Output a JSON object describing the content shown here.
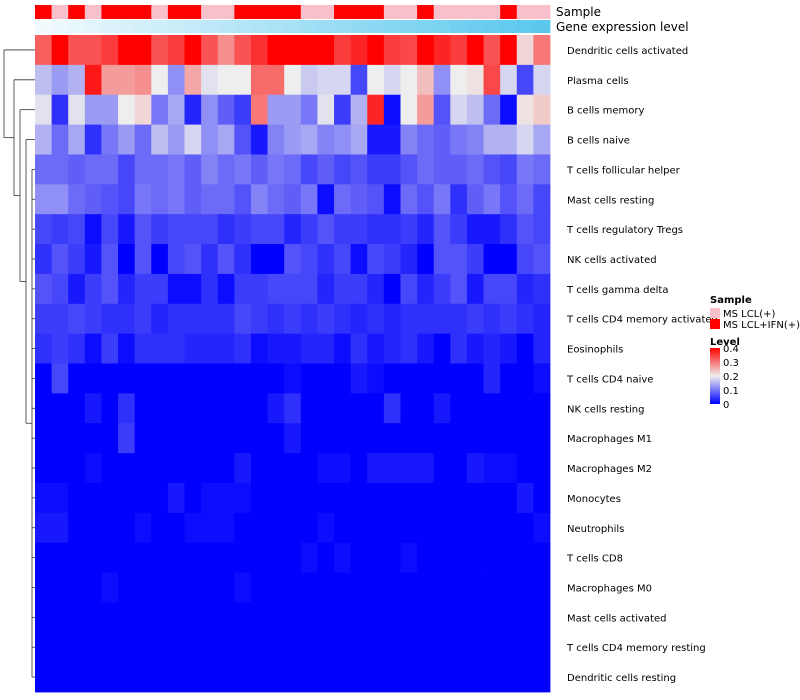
{
  "chart_data": {
    "type": "heatmap",
    "title": "",
    "annotation_labels": [
      "Sample",
      "Gene expression level"
    ],
    "rows": [
      "Dendritic cells activated",
      "Plasma cells",
      "B cells memory",
      "B cells naive",
      "T cells follicular helper",
      "Mast cells resting",
      "T cells regulatory  Tregs",
      "NK cells activated",
      "T cells gamma delta",
      "T cells CD4 memory activated",
      "Eosinophils",
      "T cells CD4 naive",
      "NK cells resting",
      "Macrophages M1",
      "Macrophages M2",
      "Monocytes",
      "Neutrophils",
      "T cells CD8",
      "Macrophages M0",
      "Mast cells activated",
      "T cells CD4 memory resting",
      "Dendritic cells resting"
    ],
    "sample_group": [
      1,
      0,
      1,
      0,
      1,
      1,
      1,
      0,
      1,
      1,
      0,
      0,
      1,
      1,
      1,
      1,
      0,
      0,
      1,
      1,
      1,
      0,
      0,
      1,
      0,
      0,
      0,
      0,
      1,
      0,
      0
    ],
    "gene_expression_level": [
      0.02,
      0.05,
      0.08,
      0.11,
      0.14,
      0.17,
      0.2,
      0.23,
      0.26,
      0.29,
      0.32,
      0.35,
      0.38,
      0.41,
      0.44,
      0.47,
      0.5,
      0.53,
      0.56,
      0.59,
      0.62,
      0.65,
      0.68,
      0.71,
      0.74,
      0.77,
      0.8,
      0.83,
      0.86,
      0.89,
      0.92
    ],
    "values": [
      [
        0.32,
        0.4,
        0.33,
        0.33,
        0.35,
        0.4,
        0.4,
        0.33,
        0.35,
        0.4,
        0.33,
        0.28,
        0.33,
        0.36,
        0.4,
        0.4,
        0.4,
        0.4,
        0.35,
        0.37,
        0.4,
        0.35,
        0.34,
        0.4,
        0.37,
        0.35,
        0.4,
        0.33,
        0.4,
        0.22,
        0.3
      ],
      [
        0.16,
        0.13,
        0.15,
        0.38,
        0.27,
        0.27,
        0.28,
        0.2,
        0.12,
        0.26,
        0.19,
        0.2,
        0.2,
        0.31,
        0.31,
        0.2,
        0.17,
        0.18,
        0.18,
        0.06,
        0.2,
        0.18,
        0.2,
        0.24,
        0.12,
        0.2,
        0.21,
        0.34,
        0.18,
        0.06,
        0.18
      ],
      [
        0.19,
        0.04,
        0.19,
        0.13,
        0.13,
        0.2,
        0.22,
        0.1,
        0.14,
        0.03,
        0.12,
        0.08,
        0.05,
        0.3,
        0.13,
        0.13,
        0.1,
        0.19,
        0.05,
        0.15,
        0.37,
        0.01,
        0.2,
        0.27,
        0.07,
        0.18,
        0.16,
        0.09,
        0.01,
        0.21,
        0.23
      ],
      [
        0.15,
        0.09,
        0.14,
        0.04,
        0.1,
        0.13,
        0.09,
        0.16,
        0.13,
        0.18,
        0.12,
        0.14,
        0.07,
        0.02,
        0.11,
        0.13,
        0.14,
        0.11,
        0.12,
        0.14,
        0.02,
        0.02,
        0.11,
        0.09,
        0.08,
        0.1,
        0.11,
        0.15,
        0.15,
        0.18,
        0.14
      ],
      [
        0.09,
        0.09,
        0.08,
        0.09,
        0.09,
        0.06,
        0.09,
        0.09,
        0.1,
        0.08,
        0.11,
        0.09,
        0.1,
        0.08,
        0.1,
        0.09,
        0.06,
        0.08,
        0.06,
        0.07,
        0.05,
        0.05,
        0.07,
        0.09,
        0.08,
        0.08,
        0.09,
        0.07,
        0.06,
        0.1,
        0.09
      ],
      [
        0.12,
        0.12,
        0.09,
        0.08,
        0.07,
        0.06,
        0.1,
        0.09,
        0.1,
        0.08,
        0.09,
        0.09,
        0.07,
        0.11,
        0.09,
        0.08,
        0.1,
        0.01,
        0.09,
        0.08,
        0.07,
        0.01,
        0.09,
        0.07,
        0.1,
        0.04,
        0.08,
        0.1,
        0.07,
        0.09,
        0.06
      ],
      [
        0.06,
        0.05,
        0.06,
        0.01,
        0.06,
        0.02,
        0.07,
        0.05,
        0.06,
        0.06,
        0.06,
        0.04,
        0.05,
        0.06,
        0.06,
        0.03,
        0.05,
        0.07,
        0.05,
        0.05,
        0.04,
        0.04,
        0.05,
        0.03,
        0.07,
        0.05,
        0.02,
        0.02,
        0.04,
        0.07,
        0.06
      ],
      [
        0.04,
        0.07,
        0.05,
        0.02,
        0.07,
        0.0,
        0.07,
        0.0,
        0.06,
        0.07,
        0.04,
        0.07,
        0.04,
        0.0,
        0.0,
        0.07,
        0.06,
        0.04,
        0.06,
        0.01,
        0.06,
        0.05,
        0.03,
        0.0,
        0.07,
        0.07,
        0.05,
        0.0,
        0.0,
        0.06,
        0.07
      ],
      [
        0.07,
        0.06,
        0.02,
        0.05,
        0.07,
        0.03,
        0.05,
        0.05,
        0.01,
        0.01,
        0.04,
        0.01,
        0.05,
        0.05,
        0.06,
        0.06,
        0.06,
        0.03,
        0.05,
        0.05,
        0.03,
        0.0,
        0.06,
        0.03,
        0.05,
        0.07,
        0.02,
        0.06,
        0.06,
        0.03,
        0.04
      ],
      [
        0.05,
        0.05,
        0.06,
        0.05,
        0.04,
        0.04,
        0.05,
        0.03,
        0.04,
        0.04,
        0.04,
        0.04,
        0.06,
        0.05,
        0.04,
        0.05,
        0.04,
        0.05,
        0.04,
        0.03,
        0.04,
        0.03,
        0.04,
        0.04,
        0.04,
        0.04,
        0.05,
        0.04,
        0.05,
        0.04,
        0.03
      ],
      [
        0.04,
        0.05,
        0.04,
        0.01,
        0.05,
        0.01,
        0.04,
        0.04,
        0.04,
        0.03,
        0.03,
        0.03,
        0.04,
        0.01,
        0.02,
        0.02,
        0.03,
        0.03,
        0.01,
        0.04,
        0.02,
        0.03,
        0.04,
        0.02,
        0.0,
        0.04,
        0.02,
        0.03,
        0.02,
        0.0,
        0.03
      ],
      [
        0.0,
        0.06,
        0.0,
        0.0,
        0.0,
        0.0,
        0.0,
        0.0,
        0.0,
        0.0,
        0.0,
        0.0,
        0.0,
        0.0,
        0.0,
        0.01,
        0.0,
        0.0,
        0.0,
        0.02,
        0.01,
        0.0,
        0.0,
        0.0,
        0.0,
        0.0,
        0.0,
        0.03,
        0.0,
        0.0,
        0.01
      ],
      [
        0.0,
        0.0,
        0.0,
        0.02,
        0.0,
        0.04,
        0.0,
        0.0,
        0.0,
        0.0,
        0.0,
        0.0,
        0.0,
        0.0,
        0.02,
        0.04,
        0.0,
        0.0,
        0.0,
        0.0,
        0.0,
        0.04,
        0.0,
        0.0,
        0.02,
        0.0,
        0.0,
        0.0,
        0.0,
        0.0,
        0.0
      ],
      [
        0.0,
        0.0,
        0.0,
        0.0,
        0.0,
        0.05,
        0.0,
        0.0,
        0.0,
        0.0,
        0.0,
        0.0,
        0.0,
        0.0,
        0.0,
        0.02,
        0.0,
        0.0,
        0.0,
        0.0,
        0.0,
        0.0,
        0.0,
        0.0,
        0.0,
        0.0,
        0.0,
        0.0,
        0.0,
        0.0,
        0.0
      ],
      [
        0.0,
        0.0,
        0.0,
        0.01,
        0.0,
        0.0,
        0.0,
        0.0,
        0.0,
        0.0,
        0.0,
        0.0,
        0.02,
        0.0,
        0.0,
        0.0,
        0.0,
        0.01,
        0.01,
        0.0,
        0.02,
        0.02,
        0.02,
        0.02,
        0.0,
        0.0,
        0.02,
        0.01,
        0.01,
        0.0,
        0.0
      ],
      [
        0.01,
        0.01,
        0.0,
        0.0,
        0.0,
        0.0,
        0.0,
        0.0,
        0.02,
        0.0,
        0.01,
        0.01,
        0.01,
        0.0,
        0.0,
        0.0,
        0.0,
        0.0,
        0.0,
        0.0,
        0.0,
        0.0,
        0.0,
        0.0,
        0.0,
        0.0,
        0.0,
        0.0,
        0.0,
        0.02,
        0.0
      ],
      [
        0.02,
        0.02,
        0.0,
        0.0,
        0.0,
        0.0,
        0.01,
        0.0,
        0.0,
        0.01,
        0.01,
        0.01,
        0.0,
        0.0,
        0.0,
        0.0,
        0.0,
        0.01,
        0.0,
        0.0,
        0.0,
        0.0,
        0.0,
        0.0,
        0.0,
        0.0,
        0.0,
        0.0,
        0.0,
        0.0,
        0.01
      ],
      [
        0.0,
        0.0,
        0.0,
        0.0,
        0.0,
        0.0,
        0.0,
        0.0,
        0.0,
        0.0,
        0.0,
        0.0,
        0.0,
        0.0,
        0.0,
        0.0,
        0.01,
        0.0,
        0.01,
        0.0,
        0.0,
        0.0,
        0.01,
        0.0,
        0.0,
        0.0,
        0.0,
        0.0,
        0.0,
        0.0,
        0.0
      ],
      [
        0.0,
        0.0,
        0.0,
        0.0,
        0.01,
        0.0,
        0.0,
        0.0,
        0.0,
        0.0,
        0.0,
        0.0,
        0.01,
        0.0,
        0.0,
        0.0,
        0.0,
        0.0,
        0.0,
        0.0,
        0.0,
        0.0,
        0.0,
        0.0,
        0.0,
        0.0,
        0.0,
        0.0,
        0.0,
        0.0,
        0.0
      ],
      [
        0.0,
        0.0,
        0.0,
        0.0,
        0.0,
        0.0,
        0.0,
        0.0,
        0.0,
        0.0,
        0.0,
        0.0,
        0.0,
        0.0,
        0.0,
        0.0,
        0.0,
        0.0,
        0.0,
        0.0,
        0.0,
        0.0,
        0.0,
        0.0,
        0.0,
        0.0,
        0.0,
        0.0,
        0.0,
        0.0,
        0.0
      ],
      [
        0.0,
        0.0,
        0.0,
        0.0,
        0.0,
        0.0,
        0.0,
        0.0,
        0.0,
        0.0,
        0.0,
        0.0,
        0.0,
        0.0,
        0.0,
        0.0,
        0.0,
        0.0,
        0.0,
        0.0,
        0.0,
        0.0,
        0.0,
        0.0,
        0.0,
        0.0,
        0.0,
        0.0,
        0.0,
        0.0,
        0.0
      ],
      [
        0.0,
        0.0,
        0.0,
        0.0,
        0.0,
        0.0,
        0.0,
        0.0,
        0.0,
        0.0,
        0.0,
        0.0,
        0.0,
        0.0,
        0.0,
        0.0,
        0.0,
        0.0,
        0.0,
        0.0,
        0.0,
        0.0,
        0.0,
        0.0,
        0.0,
        0.0,
        0.0,
        0.0,
        0.0,
        0.0,
        0.0
      ]
    ],
    "color_scale": {
      "min": 0,
      "max": 0.4,
      "stops": [
        {
          "value": 0,
          "color": "#0000ff"
        },
        {
          "value": 0.2,
          "color": "#eeeeee"
        },
        {
          "value": 0.4,
          "color": "#ff0000"
        }
      ]
    },
    "legend": {
      "sample": {
        "title": "Sample",
        "items": [
          {
            "label": "MS LCL(+)",
            "color": "#f8c0cb"
          },
          {
            "label": "MS LCL+IFN(+)",
            "color": "#ff0000"
          }
        ]
      },
      "level": {
        "title": "Level",
        "ticks": [
          "0",
          "0.1",
          "0.2",
          "0.3",
          "0.4"
        ]
      }
    },
    "gene_scale_colors": [
      "#f4fbfd",
      "#4ec3ec"
    ],
    "dendrogram": "present (row clustering)"
  }
}
